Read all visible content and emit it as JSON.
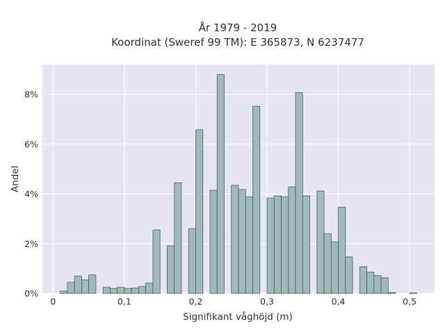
{
  "chart_data": {
    "type": "bar",
    "title_line1": "År 1979 - 2019",
    "title_line2": "Koordinat (Sweref 99 TM): E 365873, N 6237477",
    "xlabel": "Signifikant våghöjd (m)",
    "ylabel": "Andel",
    "xlim": [
      -0.015,
      0.535
    ],
    "ylim": [
      0,
      9.2
    ],
    "x_ticks": [
      0,
      0.1,
      0.2,
      0.3,
      0.4,
      0.5
    ],
    "x_tick_labels": [
      "0",
      "0,1",
      "0,2",
      "0,3",
      "0,4",
      "0,5"
    ],
    "y_ticks": [
      0,
      2,
      4,
      6,
      8
    ],
    "y_tick_labels": [
      "0%",
      "2%",
      "4%",
      "6%",
      "8%"
    ],
    "grid": true,
    "bin_width": 0.01,
    "x": [
      0.015,
      0.025,
      0.035,
      0.045,
      0.055,
      0.075,
      0.085,
      0.095,
      0.105,
      0.115,
      0.125,
      0.135,
      0.145,
      0.165,
      0.175,
      0.195,
      0.205,
      0.225,
      0.235,
      0.255,
      0.265,
      0.275,
      0.285,
      0.305,
      0.315,
      0.325,
      0.335,
      0.345,
      0.355,
      0.375,
      0.385,
      0.395,
      0.405,
      0.415,
      0.435,
      0.445,
      0.455,
      0.465,
      0.475,
      0.505
    ],
    "values": [
      0.1,
      0.45,
      0.7,
      0.55,
      0.75,
      0.25,
      0.2,
      0.25,
      0.2,
      0.22,
      0.28,
      0.42,
      2.55,
      1.92,
      4.45,
      2.6,
      6.58,
      4.15,
      8.8,
      4.35,
      4.18,
      3.88,
      7.52,
      3.83,
      3.92,
      3.88,
      4.28,
      8.07,
      3.92,
      4.12,
      2.4,
      2.07,
      3.47,
      1.47,
      1.08,
      0.86,
      0.72,
      0.63,
      0.04,
      0.02
    ]
  }
}
